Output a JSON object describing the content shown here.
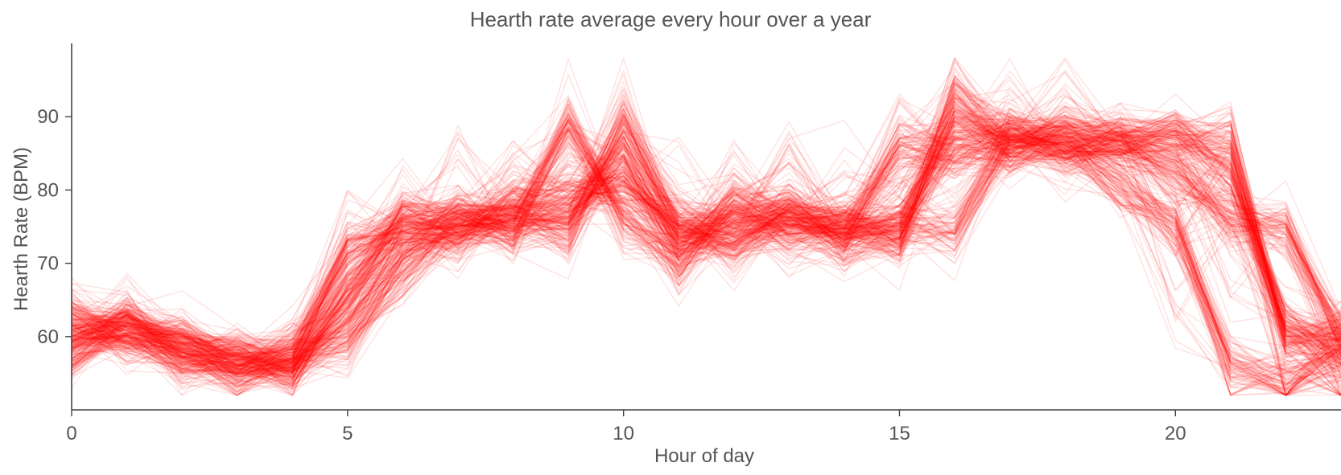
{
  "chart_data": {
    "type": "line",
    "title": "Hearth rate average every hour over a year",
    "xlabel": "Hour of day",
    "ylabel": "Hearth Rate (BPM)",
    "xlim": [
      0,
      23
    ],
    "ylim": [
      50,
      100
    ],
    "xticks": [
      0,
      5,
      10,
      15,
      20
    ],
    "yticks": [
      60,
      70,
      80,
      90
    ],
    "series_count": 365,
    "line_color": "#ff0000",
    "grid": false,
    "legend": "none",
    "representative_profiles": [
      {
        "x": [
          0,
          1,
          2,
          3,
          4,
          5,
          6,
          7,
          8,
          9,
          10,
          11,
          12,
          13,
          14,
          15,
          16,
          17,
          18,
          19,
          20,
          21,
          22,
          23
        ],
        "y": [
          62.5,
          60.0,
          58.0,
          56.5,
          56.0,
          66.0,
          76.5,
          76.0,
          76.5,
          74.0,
          89.0,
          75.0,
          72.0,
          76.0,
          74.0,
          74.5,
          88.0,
          87.0,
          86.0,
          86.5,
          87.5,
          82.0,
          61.0,
          57.5
        ]
      },
      {
        "x": [
          0,
          1,
          2,
          3,
          4,
          5,
          6,
          7,
          8,
          9,
          10,
          11,
          12,
          13,
          14,
          15,
          16,
          17,
          18,
          19,
          20,
          21,
          22,
          23
        ],
        "y": [
          57.5,
          62.5,
          59.0,
          57.0,
          57.0,
          59.0,
          69.0,
          76.0,
          75.0,
          89.5,
          76.0,
          70.0,
          78.5,
          74.5,
          74.0,
          73.5,
          93.0,
          86.0,
          88.0,
          87.0,
          87.5,
          87.0,
          60.0,
          60.5
        ]
      },
      {
        "x": [
          0,
          1,
          2,
          3,
          4,
          5,
          6,
          7,
          8,
          9,
          10,
          11,
          12,
          13,
          14,
          15,
          16,
          17,
          18,
          19,
          20,
          21,
          22,
          23
        ],
        "y": [
          61.0,
          61.0,
          57.5,
          56.0,
          58.0,
          72.0,
          75.0,
          75.0,
          76.0,
          77.0,
          84.0,
          72.0,
          76.0,
          78.0,
          74.0,
          86.0,
          85.0,
          87.0,
          86.5,
          86.0,
          82.0,
          76.0,
          75.0,
          60.0
        ]
      },
      {
        "x": [
          0,
          1,
          2,
          3,
          4,
          5,
          6,
          7,
          8,
          9,
          10,
          11,
          12,
          13,
          14,
          15,
          16,
          17,
          18,
          19,
          20,
          21,
          22,
          23
        ],
        "y": [
          59.0,
          61.5,
          58.5,
          57.0,
          56.0,
          63.0,
          73.0,
          74.0,
          78.0,
          80.0,
          80.0,
          75.0,
          74.0,
          76.0,
          75.0,
          75.0,
          75.0,
          87.0,
          86.0,
          80.0,
          75.0,
          56.0,
          54.0,
          58.0
        ]
      }
    ]
  }
}
